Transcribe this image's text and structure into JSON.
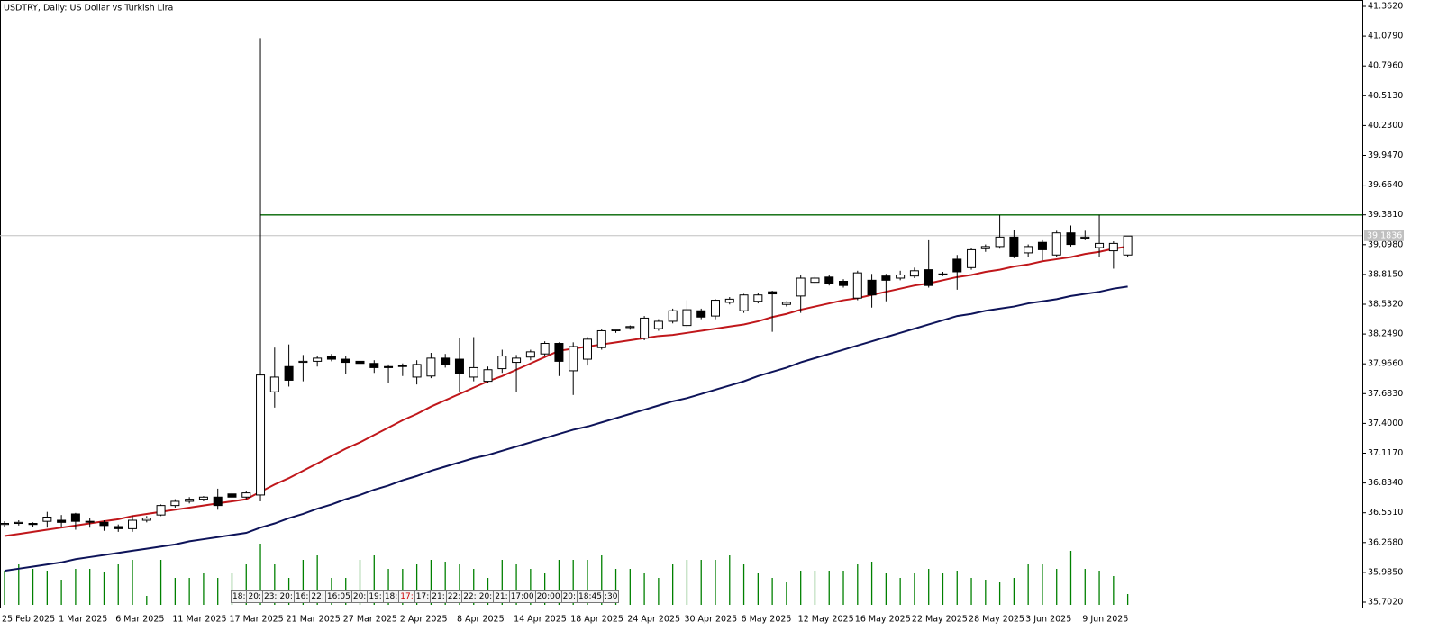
{
  "chart_data": {
    "type": "candlestick",
    "title": "USDTRY, Daily:  US Dollar vs Turkish Lira",
    "categories": [
      "25 Feb 2025",
      null,
      null,
      null,
      "1 Mar 2025",
      null,
      null,
      null,
      "6 Mar 2025",
      null,
      null,
      null,
      "11 Mar 2025",
      null,
      null,
      null,
      "17 Mar 2025",
      null,
      null,
      null,
      "21 Mar 2025",
      null,
      null,
      null,
      "27 Mar 2025",
      null,
      null,
      null,
      "2 Apr 2025",
      null,
      null,
      null,
      "8 Apr 2025",
      null,
      null,
      null,
      "14 Apr 2025",
      null,
      null,
      null,
      "18 Apr 2025",
      null,
      null,
      null,
      "24 Apr 2025",
      null,
      null,
      null,
      "30 Apr 2025",
      null,
      null,
      null,
      "6 May 2025",
      null,
      null,
      null,
      "12 May 2025",
      null,
      null,
      null,
      "16 May 2025",
      null,
      null,
      null,
      "22 May 2025",
      null,
      null,
      null,
      "28 May 2025",
      null,
      null,
      null,
      "3 Jun 2025",
      null,
      null,
      null,
      "9 Jun 2025",
      null,
      null,
      null
    ],
    "open": [
      36.44,
      36.45,
      36.45,
      36.47,
      36.48,
      36.54,
      36.47,
      36.46,
      36.42,
      36.4,
      36.48,
      36.53,
      36.62,
      36.66,
      36.68,
      36.7,
      36.73,
      36.7,
      36.72,
      37.7,
      37.94,
      37.98,
      37.99,
      38.04,
      38.01,
      37.99,
      37.97,
      37.94,
      37.95,
      37.84,
      37.85,
      38.02,
      38.01,
      37.84,
      37.8,
      37.92,
      37.98,
      38.03,
      38.06,
      38.16,
      37.9,
      38.01,
      38.12,
      38.28,
      38.31,
      38.21,
      38.3,
      38.37,
      38.33,
      38.47,
      38.42,
      38.55,
      38.47,
      38.56,
      38.65,
      38.53,
      38.61,
      38.74,
      38.79,
      38.75,
      38.59,
      38.76,
      38.8,
      38.78,
      38.8,
      38.86,
      38.82,
      38.96,
      38.88,
      39.06,
      39.08,
      39.17,
      39.02,
      39.12,
      39.0,
      39.21,
      39.16,
      39.07,
      39.04,
      39.0
    ],
    "high": [
      36.47,
      36.48,
      36.46,
      36.56,
      36.53,
      36.55,
      36.5,
      36.48,
      36.44,
      36.52,
      36.52,
      36.63,
      36.68,
      36.7,
      36.71,
      36.78,
      36.75,
      36.76,
      41.06,
      38.12,
      38.15,
      38.05,
      38.04,
      38.06,
      38.04,
      38.03,
      38.0,
      37.96,
      37.97,
      38.0,
      38.07,
      38.06,
      38.21,
      38.22,
      37.94,
      38.1,
      38.05,
      38.1,
      38.18,
      38.17,
      38.17,
      38.22,
      38.3,
      38.3,
      38.33,
      38.42,
      38.39,
      38.49,
      38.57,
      38.49,
      38.58,
      38.6,
      38.63,
      38.64,
      38.66,
      38.56,
      38.81,
      38.8,
      38.81,
      38.77,
      38.85,
      38.82,
      38.82,
      38.85,
      38.88,
      39.14,
      38.84,
      39.0,
      39.07,
      39.1,
      39.38,
      39.24,
      39.1,
      39.14,
      39.23,
      39.28,
      39.23,
      39.38,
      39.13,
      39.18
    ],
    "low": [
      36.42,
      36.43,
      36.42,
      36.41,
      36.42,
      36.39,
      36.41,
      36.38,
      36.37,
      36.37,
      36.46,
      36.52,
      36.6,
      36.64,
      36.66,
      36.58,
      36.69,
      36.68,
      36.66,
      37.55,
      37.75,
      37.8,
      37.94,
      37.99,
      37.87,
      37.94,
      37.88,
      37.78,
      37.85,
      37.77,
      37.83,
      37.93,
      37.7,
      37.8,
      37.78,
      37.88,
      37.7,
      38.0,
      38.04,
      37.85,
      37.67,
      37.95,
      38.1,
      38.26,
      38.29,
      38.19,
      38.28,
      38.35,
      38.31,
      38.39,
      38.39,
      38.53,
      38.45,
      38.54,
      38.27,
      38.51,
      38.45,
      38.72,
      38.71,
      38.69,
      38.57,
      38.5,
      38.56,
      38.76,
      38.78,
      38.69,
      38.8,
      38.67,
      38.86,
      39.03,
      39.06,
      38.97,
      38.98,
      38.95,
      38.98,
      39.08,
      39.14,
      38.98,
      38.87,
      38.98
    ],
    "close": [
      36.45,
      36.46,
      36.44,
      36.51,
      36.46,
      36.47,
      36.47,
      36.43,
      36.4,
      36.48,
      36.5,
      36.62,
      36.66,
      36.68,
      36.7,
      36.62,
      36.7,
      36.74,
      37.86,
      37.84,
      37.81,
      37.99,
      38.02,
      38.01,
      37.98,
      37.97,
      37.93,
      37.93,
      37.94,
      37.96,
      38.02,
      37.96,
      37.87,
      37.93,
      37.91,
      38.04,
      38.02,
      38.08,
      38.16,
      37.99,
      38.13,
      38.2,
      38.28,
      38.29,
      38.32,
      38.4,
      38.37,
      38.47,
      38.48,
      38.41,
      38.57,
      38.58,
      38.62,
      38.62,
      38.63,
      38.55,
      38.78,
      38.78,
      38.73,
      38.71,
      38.83,
      38.62,
      38.76,
      38.81,
      38.85,
      38.71,
      38.82,
      38.84,
      39.05,
      39.08,
      39.17,
      38.99,
      39.08,
      39.05,
      39.21,
      39.1,
      39.17,
      39.11,
      39.11,
      39.18
    ],
    "series": [
      {
        "color": "#c0171b",
        "values": [
          36.33,
          36.35,
          36.37,
          36.39,
          36.41,
          36.43,
          36.45,
          36.47,
          36.49,
          36.52,
          36.54,
          36.56,
          36.58,
          36.6,
          36.62,
          36.64,
          36.66,
          36.68,
          36.75,
          36.82,
          36.88,
          36.95,
          37.02,
          37.09,
          37.16,
          37.22,
          37.29,
          37.36,
          37.43,
          37.49,
          37.56,
          37.62,
          37.68,
          37.74,
          37.8,
          37.85,
          37.91,
          37.97,
          38.03,
          38.09,
          38.11,
          38.13,
          38.15,
          38.17,
          38.19,
          38.21,
          38.23,
          38.24,
          38.26,
          38.28,
          38.3,
          38.32,
          38.34,
          38.37,
          38.41,
          38.44,
          38.48,
          38.51,
          38.54,
          38.57,
          38.59,
          38.62,
          38.65,
          38.68,
          38.71,
          38.73,
          38.76,
          38.79,
          38.81,
          38.84,
          38.86,
          38.89,
          38.91,
          38.94,
          38.96,
          38.98,
          39.01,
          39.03,
          39.06,
          39.08
        ]
      },
      {
        "color": "#0d1359",
        "values": [
          36.0,
          36.02,
          36.04,
          36.06,
          36.08,
          36.11,
          36.13,
          36.15,
          36.17,
          36.19,
          36.21,
          36.23,
          36.25,
          36.28,
          36.3,
          36.32,
          36.34,
          36.36,
          36.41,
          36.45,
          36.5,
          36.54,
          36.59,
          36.63,
          36.68,
          36.72,
          36.77,
          36.81,
          36.86,
          36.9,
          36.95,
          36.99,
          37.03,
          37.07,
          37.1,
          37.14,
          37.18,
          37.22,
          37.26,
          37.3,
          37.34,
          37.37,
          37.41,
          37.45,
          37.49,
          37.53,
          37.57,
          37.61,
          37.64,
          37.68,
          37.72,
          37.76,
          37.8,
          37.85,
          37.89,
          37.93,
          37.98,
          38.02,
          38.06,
          38.1,
          38.14,
          38.18,
          38.22,
          38.26,
          38.3,
          38.34,
          38.38,
          38.42,
          38.44,
          38.47,
          38.49,
          38.51,
          38.54,
          38.56,
          38.58,
          38.61,
          38.63,
          38.65,
          38.68,
          38.7
        ]
      }
    ],
    "volume": [
      38,
      45,
      40,
      38,
      28,
      40,
      40,
      37,
      45,
      50,
      10,
      50,
      30,
      30,
      35,
      30,
      35,
      45,
      68,
      45,
      30,
      50,
      55,
      30,
      30,
      50,
      55,
      40,
      40,
      45,
      50,
      48,
      45,
      40,
      30,
      50,
      45,
      40,
      35,
      50,
      50,
      50,
      55,
      40,
      40,
      35,
      30,
      45,
      50,
      50,
      50,
      55,
      45,
      35,
      30,
      25,
      38,
      38,
      38,
      38,
      45,
      48,
      35,
      30,
      35,
      40,
      35,
      38,
      30,
      28,
      25,
      30,
      45,
      45,
      40,
      60,
      40,
      38,
      32,
      12
    ],
    "volume_color": "#008000",
    "ylim": [
      35.702,
      41.362
    ],
    "yticks": [
      {
        "value": 41.362,
        "label": "41.3620"
      },
      {
        "value": 41.079,
        "label": "41.0790"
      },
      {
        "value": 40.796,
        "label": "40.7960"
      },
      {
        "value": 40.513,
        "label": "40.5130"
      },
      {
        "value": 40.23,
        "label": "40.2300"
      },
      {
        "value": 39.947,
        "label": "39.9470"
      },
      {
        "value": 39.664,
        "label": "39.6640"
      },
      {
        "value": 39.381,
        "label": "39.3810"
      },
      {
        "value": 39.098,
        "label": "39.0980"
      },
      {
        "value": 38.815,
        "label": "38.8150"
      },
      {
        "value": 38.532,
        "label": "38.5320"
      },
      {
        "value": 38.249,
        "label": "38.2490"
      },
      {
        "value": 37.966,
        "label": "37.9660"
      },
      {
        "value": 37.683,
        "label": "37.6830"
      },
      {
        "value": 37.4,
        "label": "37.4000"
      },
      {
        "value": 37.117,
        "label": "37.1170"
      },
      {
        "value": 36.834,
        "label": "36.8340"
      },
      {
        "value": 36.551,
        "label": "36.5510"
      },
      {
        "value": 36.268,
        "label": "36.2680"
      },
      {
        "value": 35.985,
        "label": "35.9850"
      },
      {
        "value": 35.702,
        "label": "35.7020"
      }
    ],
    "current_price": {
      "value": 39.1836,
      "label": "39.1836"
    },
    "level": {
      "value": 39.38,
      "color": "#006400"
    },
    "time_markers": [
      "18:",
      "20:",
      "23:",
      "20:",
      "16:",
      "22:",
      "16:05",
      "20:",
      "19:",
      "18:",
      "17:",
      "17:",
      "21:",
      "22:",
      "22:",
      "20:",
      "21:",
      "17:00",
      "20:00",
      "20:",
      "18:45",
      ":30"
    ]
  }
}
